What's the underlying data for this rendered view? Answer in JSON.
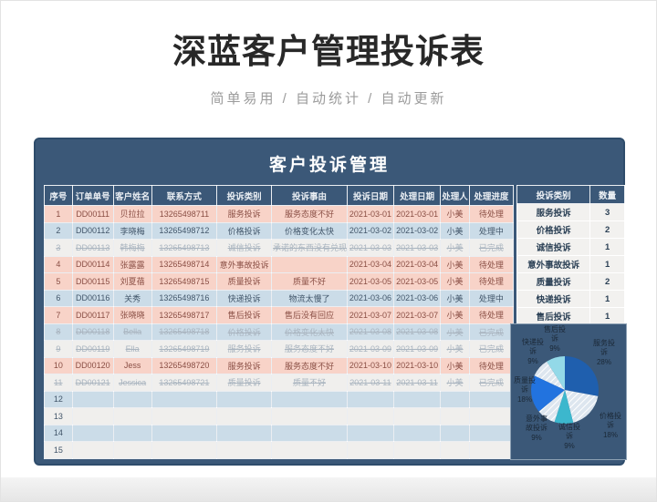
{
  "page": {
    "title": "深蓝客户管理投诉表",
    "subtitle": "简单易用 / 自动统计 / 自动更新"
  },
  "card": {
    "title": "客户投诉管理"
  },
  "table": {
    "headers": [
      "序号",
      "订单单号",
      "客户姓名",
      "联系方式",
      "投诉类别",
      "投诉事由",
      "投诉日期",
      "处理日期",
      "处理人",
      "处理进度"
    ],
    "rows": [
      {
        "no": "1",
        "order": "DD00111",
        "name": "贝拉拉",
        "phone": "13265498711",
        "category": "服务投诉",
        "reason": "服务态度不好",
        "date": "2021-03-01",
        "handle_date": "2021-03-01",
        "handler": "小美",
        "status": "待处理"
      },
      {
        "no": "2",
        "order": "DD00112",
        "name": "李晓梅",
        "phone": "13265498712",
        "category": "价格投诉",
        "reason": "价格变化太快",
        "date": "2021-03-02",
        "handle_date": "2021-03-02",
        "handler": "小美",
        "status": "处理中"
      },
      {
        "no": "3",
        "order": "DD00113",
        "name": "韩梅梅",
        "phone": "13265498713",
        "category": "诚信投诉",
        "reason": "承诺的东西没有兑现",
        "date": "2021-03-03",
        "handle_date": "2021-03-03",
        "handler": "小美",
        "status": "已完成"
      },
      {
        "no": "4",
        "order": "DD00114",
        "name": "张露露",
        "phone": "13265498714",
        "category": "意外事故投诉",
        "reason": "",
        "date": "2021-03-04",
        "handle_date": "2021-03-04",
        "handler": "小美",
        "status": "待处理"
      },
      {
        "no": "5",
        "order": "DD00115",
        "name": "刘夏蓓",
        "phone": "13265498715",
        "category": "质量投诉",
        "reason": "质量不好",
        "date": "2021-03-05",
        "handle_date": "2021-03-05",
        "handler": "小美",
        "status": "待处理"
      },
      {
        "no": "6",
        "order": "DD00116",
        "name": "关秀",
        "phone": "13265498716",
        "category": "快递投诉",
        "reason": "物流太慢了",
        "date": "2021-03-06",
        "handle_date": "2021-03-06",
        "handler": "小美",
        "status": "处理中"
      },
      {
        "no": "7",
        "order": "DD00117",
        "name": "张晓晓",
        "phone": "13265498717",
        "category": "售后投诉",
        "reason": "售后没有回应",
        "date": "2021-03-07",
        "handle_date": "2021-03-07",
        "handler": "小美",
        "status": "待处理"
      },
      {
        "no": "8",
        "order": "DD00118",
        "name": "Bella",
        "phone": "13265498718",
        "category": "价格投诉",
        "reason": "价格变化太快",
        "date": "2021-03-08",
        "handle_date": "2021-03-08",
        "handler": "小美",
        "status": "已完成"
      },
      {
        "no": "9",
        "order": "DD00119",
        "name": "Ella",
        "phone": "13265498719",
        "category": "服务投诉",
        "reason": "服务态度不好",
        "date": "2021-03-09",
        "handle_date": "2021-03-09",
        "handler": "小美",
        "status": "已完成"
      },
      {
        "no": "10",
        "order": "DD00120",
        "name": "Jess",
        "phone": "13265498720",
        "category": "服务投诉",
        "reason": "服务态度不好",
        "date": "2021-03-10",
        "handle_date": "2021-03-10",
        "handler": "小美",
        "status": "待处理"
      },
      {
        "no": "11",
        "order": "DD00121",
        "name": "Jessica",
        "phone": "13265498721",
        "category": "质量投诉",
        "reason": "质量不好",
        "date": "2021-03-11",
        "handle_date": "2021-03-11",
        "handler": "小美",
        "status": "已完成"
      },
      {
        "no": "12",
        "order": "",
        "name": "",
        "phone": "",
        "category": "",
        "reason": "",
        "date": "",
        "handle_date": "",
        "handler": "",
        "status": ""
      },
      {
        "no": "13",
        "order": "",
        "name": "",
        "phone": "",
        "category": "",
        "reason": "",
        "date": "",
        "handle_date": "",
        "handler": "",
        "status": ""
      },
      {
        "no": "14",
        "order": "",
        "name": "",
        "phone": "",
        "category": "",
        "reason": "",
        "date": "",
        "handle_date": "",
        "handler": "",
        "status": ""
      },
      {
        "no": "15",
        "order": "",
        "name": "",
        "phone": "",
        "category": "",
        "reason": "",
        "date": "",
        "handle_date": "",
        "handler": "",
        "status": ""
      }
    ]
  },
  "summary": {
    "headers": [
      "投诉类别",
      "数量"
    ],
    "rows": [
      {
        "category": "服务投诉",
        "count": "3"
      },
      {
        "category": "价格投诉",
        "count": "2"
      },
      {
        "category": "诚信投诉",
        "count": "1"
      },
      {
        "category": "意外事故投诉",
        "count": "1"
      },
      {
        "category": "质量投诉",
        "count": "2"
      },
      {
        "category": "快递投诉",
        "count": "1"
      },
      {
        "category": "售后投诉",
        "count": "1"
      }
    ]
  },
  "chart_data": {
    "type": "pie",
    "title": "",
    "labels": [
      "服务投诉",
      "价格投诉",
      "诚信投诉",
      "意外事故投诉",
      "质量投诉",
      "快递投诉",
      "售后投诉"
    ],
    "values": [
      28,
      18,
      9,
      9,
      18,
      9,
      9
    ],
    "counts": [
      3,
      2,
      1,
      1,
      2,
      1,
      1
    ],
    "unit": "%",
    "colors": [
      "#1f5fae",
      "#dde6ef",
      "#3cb7cd",
      "#dde6ef",
      "#2273df",
      "#dde6ef",
      "#93d9e8"
    ],
    "hatched": [
      false,
      true,
      false,
      true,
      false,
      true,
      false
    ],
    "hatch_line_color": "#ffffff",
    "background": "#3b5878",
    "label_color": "#1b2836",
    "legend_position": "around"
  },
  "colors": {
    "card_navy": "#3b5878",
    "pending_row": "#f8d3c8",
    "pending_text": "#8a4f45",
    "alt_row_blue": "#cbdce8",
    "alt_row_white": "#f0efed",
    "done_text": "#a9b4bf",
    "header_text": "#e9eef3"
  },
  "status_values": {
    "pending": "待处理",
    "processing": "处理中",
    "done": "已完成"
  }
}
